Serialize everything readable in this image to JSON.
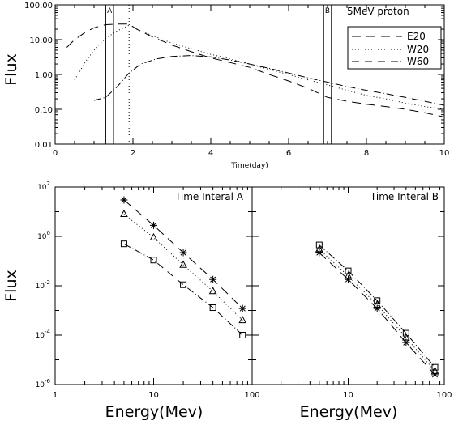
{
  "chart_data": [
    {
      "type": "line",
      "title": "5MeV proton",
      "xlabel": "Time(day)",
      "ylabel": "Flux",
      "xlim": [
        0,
        10
      ],
      "ylim": [
        0.01,
        100
      ],
      "yscale": "log",
      "x_ticks": [
        "0",
        "2",
        "4",
        "6",
        "8",
        "10"
      ],
      "y_ticks": [
        "0.01",
        "0.10",
        "1.00",
        "10.00",
        "100.00"
      ],
      "legend_position": "top-right",
      "interval_markers": [
        {
          "label": "A",
          "start": 1.3,
          "end": 1.5
        },
        {
          "label": "B",
          "start": 6.9,
          "end": 7.1
        }
      ],
      "dotted_marker_x": 1.9,
      "series": [
        {
          "name": "E20",
          "dash": "long-dash",
          "x": [
            0.3,
            0.5,
            0.8,
            1.0,
            1.3,
            1.6,
            1.9,
            2.1,
            2.5,
            3.0,
            3.5,
            4.0,
            4.5,
            5.0,
            5.5,
            6.0,
            6.5,
            7.0,
            7.5,
            8.0,
            8.5,
            9.0,
            9.5,
            10.0
          ],
          "values": [
            6.0,
            10.0,
            17.0,
            22.0,
            27.0,
            28.0,
            28.0,
            20.0,
            12.0,
            7.0,
            4.5,
            3.0,
            2.2,
            1.6,
            1.0,
            0.65,
            0.4,
            0.22,
            0.17,
            0.14,
            0.12,
            0.1,
            0.08,
            0.06
          ]
        },
        {
          "name": "W20",
          "dash": "dotted",
          "x": [
            0.5,
            0.8,
            1.0,
            1.3,
            1.6,
            1.9,
            2.1,
            2.5,
            3.0,
            3.5,
            4.0,
            4.5,
            5.0,
            5.5,
            6.0,
            6.5,
            7.0,
            7.5,
            8.0,
            8.5,
            9.0,
            9.5,
            10.0
          ],
          "values": [
            0.7,
            2.5,
            5.0,
            11.0,
            18.0,
            26.0,
            20.0,
            13.0,
            8.0,
            5.5,
            3.8,
            2.8,
            2.0,
            1.4,
            1.0,
            0.7,
            0.5,
            0.35,
            0.25,
            0.2,
            0.15,
            0.12,
            0.1
          ]
        },
        {
          "name": "W60",
          "dash": "dash-dot",
          "x": [
            1.0,
            1.3,
            1.6,
            1.9,
            2.2,
            2.6,
            3.0,
            3.5,
            4.0,
            4.5,
            5.0,
            5.5,
            6.0,
            6.5,
            7.0,
            7.5,
            8.0,
            8.5,
            9.0,
            9.5,
            10.0
          ],
          "values": [
            0.18,
            0.22,
            0.45,
            1.1,
            2.0,
            2.8,
            3.3,
            3.5,
            3.2,
            2.6,
            2.0,
            1.5,
            1.1,
            0.8,
            0.6,
            0.45,
            0.35,
            0.28,
            0.22,
            0.17,
            0.13
          ]
        }
      ]
    },
    {
      "type": "line",
      "title": "Time Interal A",
      "xlabel": "Energy(Mev)",
      "ylabel": "Flux",
      "xscale": "log",
      "yscale": "log",
      "xlim": [
        1,
        100
      ],
      "ylim": [
        1e-06,
        100
      ],
      "x_ticks": [
        "1",
        "10",
        "100"
      ],
      "y_ticks": [
        {
          "base": "10",
          "exp": "2"
        },
        {
          "base": "10",
          "exp": "0"
        },
        {
          "base": "10",
          "exp": "-2"
        },
        {
          "base": "10",
          "exp": "-4"
        },
        {
          "base": "10",
          "exp": "-6"
        }
      ],
      "series": [
        {
          "marker": "asterisk",
          "dash": "long-dash",
          "x": [
            5,
            10,
            20,
            40,
            80
          ],
          "values": [
            30,
            2.8,
            0.22,
            0.018,
            0.0012
          ]
        },
        {
          "marker": "triangle",
          "dash": "dotted",
          "x": [
            5,
            10,
            20,
            40,
            80
          ],
          "values": [
            8,
            0.9,
            0.07,
            0.006,
            0.0004
          ]
        },
        {
          "marker": "square",
          "dash": "dash-dot",
          "x": [
            5,
            10,
            20,
            40,
            80
          ],
          "values": [
            0.5,
            0.11,
            0.011,
            0.0013,
            0.0001
          ]
        }
      ]
    },
    {
      "type": "line",
      "title": "Time Interal B",
      "xlabel": "Energy(Mev)",
      "xscale": "log",
      "yscale": "log",
      "xlim": [
        1,
        100
      ],
      "ylim": [
        1e-06,
        100
      ],
      "x_ticks": [
        "10",
        "100"
      ],
      "series": [
        {
          "marker": "asterisk",
          "dash": "long-dash",
          "x": [
            5,
            10,
            20,
            40,
            80
          ],
          "values": [
            0.22,
            0.018,
            0.0012,
            5e-05,
            2.5e-06
          ]
        },
        {
          "marker": "triangle",
          "dash": "dotted",
          "x": [
            5,
            10,
            20,
            40,
            80
          ],
          "values": [
            0.3,
            0.025,
            0.0017,
            8e-05,
            3.5e-06
          ]
        },
        {
          "marker": "square",
          "dash": "dash-dot",
          "x": [
            5,
            10,
            20,
            40,
            80
          ],
          "values": [
            0.45,
            0.04,
            0.0025,
            0.00012,
            5e-06
          ]
        }
      ]
    }
  ]
}
